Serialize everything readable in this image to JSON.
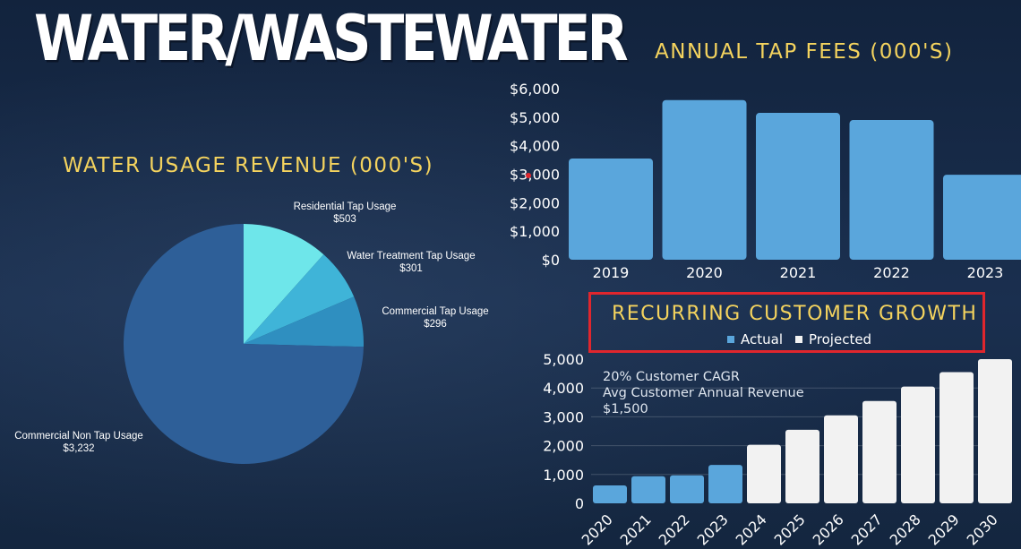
{
  "page": {
    "title": "WATER/WASTEWATER"
  },
  "chart_data": [
    {
      "type": "pie",
      "title": "WATER USAGE REVENUE (000'S)",
      "slices": [
        {
          "label": "Residential Tap Usage",
          "value": 503,
          "display": "$503",
          "color": "#6ee6ea"
        },
        {
          "label": "Water Treatment Tap Usage",
          "value": 301,
          "display": "$301",
          "color": "#3fb4d8"
        },
        {
          "label": "Commercial Tap Usage",
          "value": 296,
          "display": "$296",
          "color": "#2f8fc0"
        },
        {
          "label": "Commercial Non Tap Usage",
          "value": 3232,
          "display": "$3,232",
          "color": "#2e5f98"
        }
      ]
    },
    {
      "type": "bar",
      "title": "ANNUAL TAP FEES (000'S)",
      "categories": [
        "2019",
        "2020",
        "2021",
        "2022",
        "2023"
      ],
      "values": [
        3550,
        5600,
        5150,
        4900,
        2980
      ],
      "ylim": [
        0,
        6000
      ],
      "yticks": [
        "$0",
        "$1,000",
        "$2,000",
        "$3,000",
        "$4,000",
        "$5,000",
        "$6,000"
      ],
      "color": "#5aa6dc"
    },
    {
      "type": "bar",
      "title": "RECURRING CUSTOMER GROWTH",
      "categories": [
        "2020",
        "2021",
        "2022",
        "2023",
        "2024",
        "2025",
        "2026",
        "2027",
        "2028",
        "2029",
        "2030"
      ],
      "series": [
        {
          "name": "Actual",
          "color": "#5aa6dc",
          "values": [
            620,
            940,
            970,
            1330,
            null,
            null,
            null,
            null,
            null,
            null,
            null
          ]
        },
        {
          "name": "Projected",
          "color": "#f2f2f2",
          "values": [
            null,
            null,
            null,
            null,
            2030,
            2550,
            3050,
            3550,
            4050,
            4550,
            5000
          ]
        }
      ],
      "ylim": [
        0,
        5000
      ],
      "yticks": [
        "0",
        "1,000",
        "2,000",
        "3,000",
        "4,000",
        "5,000"
      ],
      "annotations": [
        "20% Customer CAGR",
        "Avg Customer Annual Revenue",
        "$1,500"
      ],
      "legend_position": "top"
    }
  ]
}
